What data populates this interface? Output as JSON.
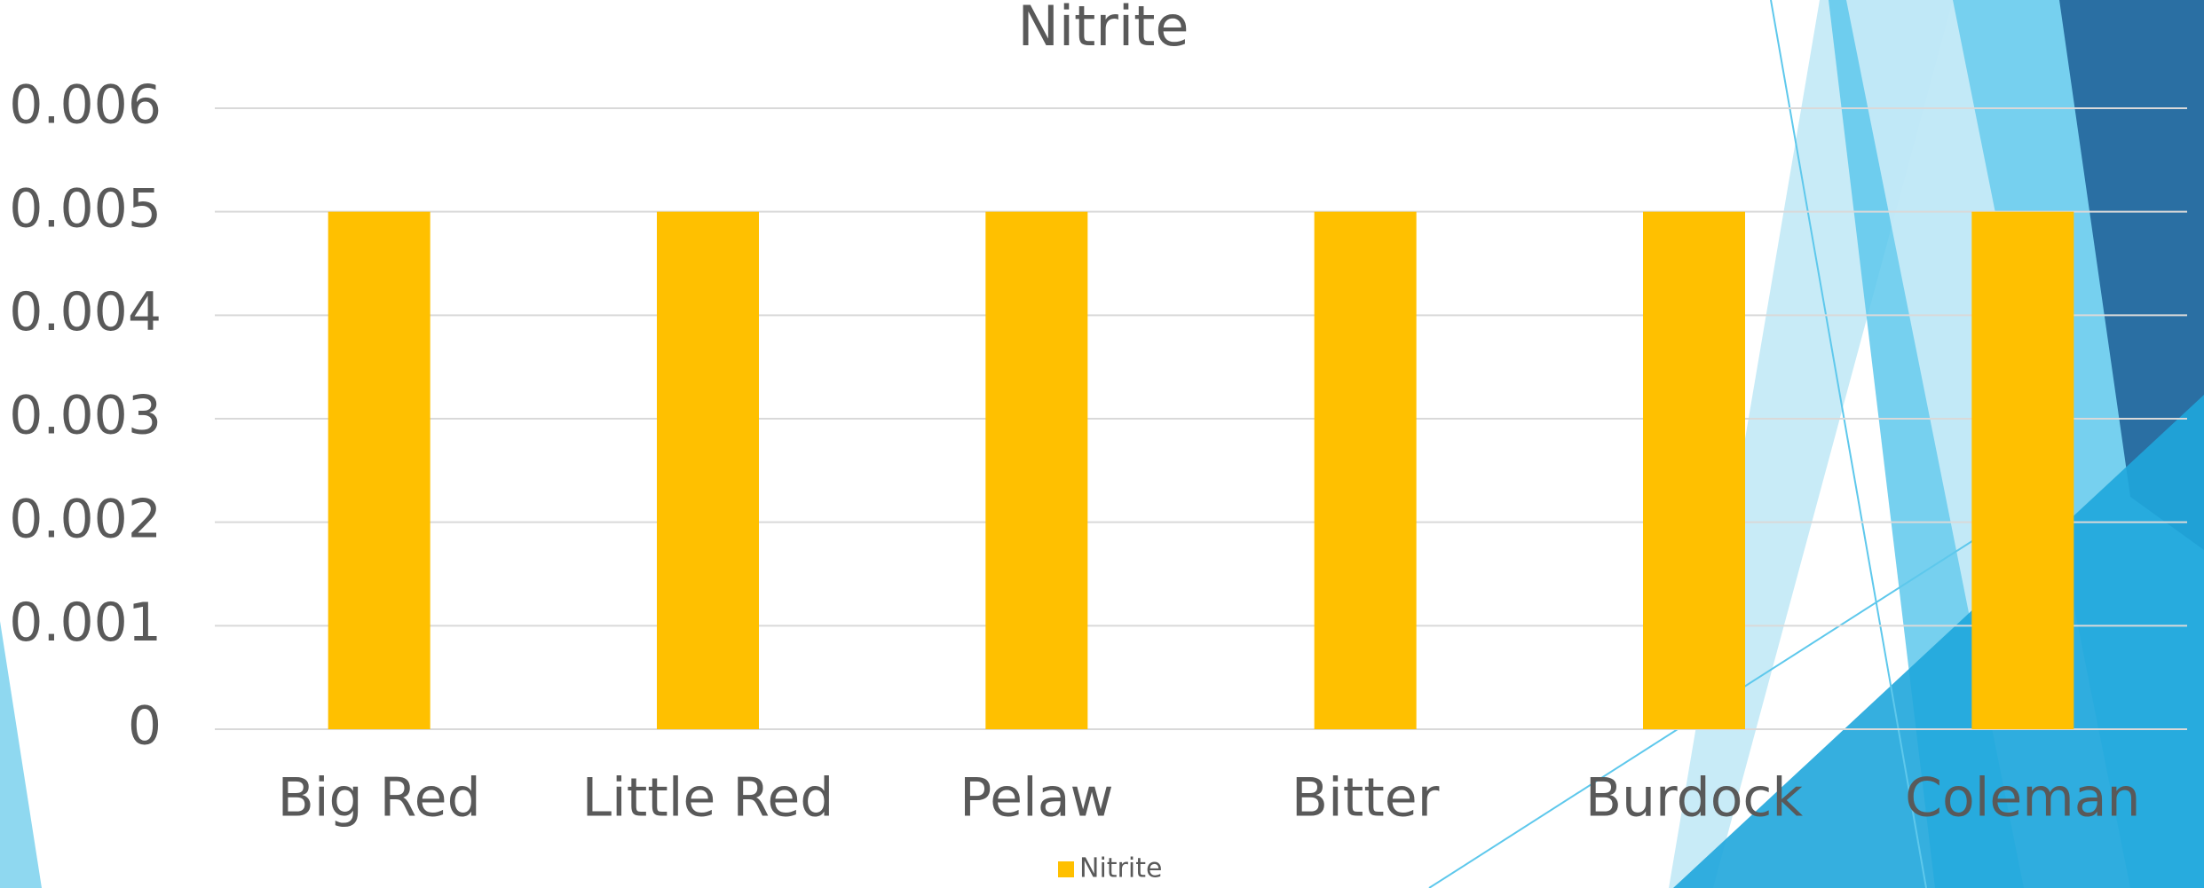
{
  "chart_data": {
    "type": "bar",
    "title": "Nitrite",
    "categories": [
      "Big Red",
      "Little Red",
      "Pelaw",
      "Bitter",
      "Burdock",
      "Coleman"
    ],
    "series": [
      {
        "name": "Nitrite",
        "color": "#FFC000",
        "values": [
          0.005,
          0.005,
          0.005,
          0.005,
          0.005,
          0.005
        ]
      }
    ],
    "ylim": [
      0,
      0.006
    ],
    "yticks": [
      0,
      0.001,
      0.002,
      0.003,
      0.004,
      0.005,
      0.006
    ],
    "grid": true,
    "legend": "bottom"
  }
}
